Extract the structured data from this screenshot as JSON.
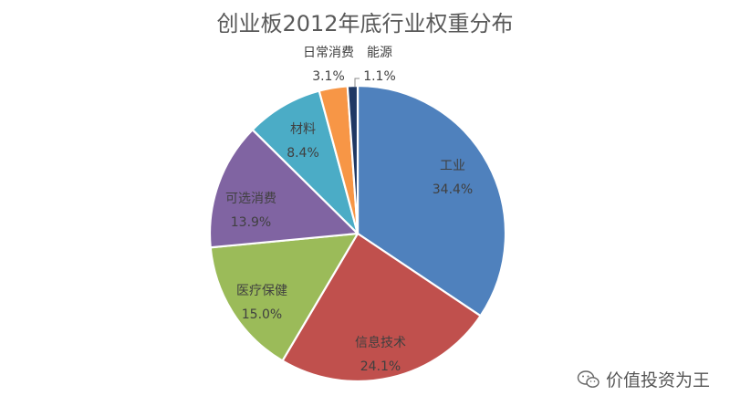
{
  "chart_data": {
    "type": "pie",
    "title": "创业板2012年底行业权重分布",
    "slices": [
      {
        "label": "工业",
        "value": 34.4,
        "value_label": "34.4%",
        "color": "#4f81bd"
      },
      {
        "label": "信息技术",
        "value": 24.1,
        "value_label": "24.1%",
        "color": "#c0504d"
      },
      {
        "label": "医疗保健",
        "value": 15.0,
        "value_label": "15.0%",
        "color": "#9bbb59"
      },
      {
        "label": "可选消费",
        "value": 13.9,
        "value_label": "13.9%",
        "color": "#8064a2"
      },
      {
        "label": "材料",
        "value": 8.4,
        "value_label": "8.4%",
        "color": "#4bacc6"
      },
      {
        "label": "日常消费",
        "value": 3.1,
        "value_label": "3.1%",
        "color": "#f79646"
      },
      {
        "label": "能源",
        "value": 1.1,
        "value_label": "1.1%",
        "color": "#1f3864"
      }
    ],
    "start_angle": "12 o'clock",
    "direction": "clockwise",
    "legend": "none",
    "data_labels": "category and percent"
  },
  "watermark": {
    "text": "价值投资为王",
    "icon": "wechat-icon"
  }
}
